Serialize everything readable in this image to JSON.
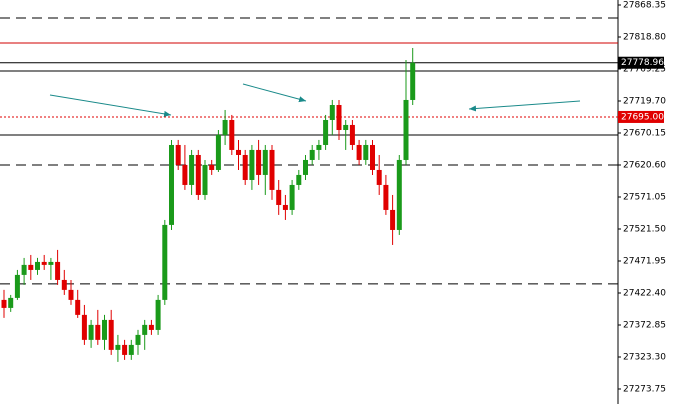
{
  "chart_data": {
    "type": "candlestick",
    "ylim": [
      27250.5,
      27876.1
    ],
    "yticks": [
      27868.35,
      {
        "value": 27818.8,
        "label": "27818.80"
      },
      27769.25,
      {
        "value": 27719.7,
        "label": "27719.70"
      },
      27670.15,
      {
        "value": 27620.6,
        "label": "27620.60"
      },
      27571.05,
      {
        "value": 27521.5,
        "label": "27521.50"
      },
      27471.95,
      {
        "value": 27422.4,
        "label": "27422.40"
      },
      27372.85,
      {
        "value": 27323.3,
        "label": "27323.30"
      },
      27273.75
    ],
    "up_color": "#1a9a1a",
    "down_color": "#e00000",
    "open": [
      27411.7,
      27399.3,
      27414.8,
      27450.4,
      27465.9,
      27458.1,
      27470.5,
      27465.9,
      27470.5,
      27442.6,
      27427.2,
      27411.7,
      27388.5,
      27349.8,
      27373.0,
      27349.8,
      27380.7,
      27334.3,
      27342.0,
      27326.5,
      27342.0,
      27357.5,
      27373.0,
      27365.2,
      27411.7,
      27527.8,
      27651.6,
      27620.7,
      27589.7,
      27636.1,
      27574.2,
      27620.7,
      27612.9,
      27667.1,
      27690.3,
      27643.9,
      27636.1,
      27597.4,
      27643.9,
      27605.2,
      27643.9,
      27582.0,
      27558.7,
      27551.0,
      27589.7,
      27605.2,
      27628.4,
      27643.9,
      27651.6,
      27690.3,
      27713.5,
      27674.8,
      27682.6,
      27651.6,
      27628.4,
      27651.6,
      27612.9,
      27589.7,
      27551.0,
      27520.0,
      27628.4,
      27721.3
    ],
    "high": [
      27427.2,
      27419.4,
      27458.1,
      27476.7,
      27481.3,
      27476.7,
      27481.3,
      27476.7,
      27489.1,
      27458.1,
      27442.6,
      27427.2,
      27403.9,
      27380.7,
      27396.2,
      27388.5,
      27396.2,
      27357.5,
      27349.8,
      27349.8,
      27365.2,
      27380.7,
      27380.7,
      27419.4,
      27535.5,
      27659.4,
      27659.4,
      27651.6,
      27643.9,
      27643.9,
      27628.4,
      27628.4,
      27674.8,
      27705.8,
      27698.1,
      27659.4,
      27643.9,
      27651.6,
      27659.4,
      27651.6,
      27651.6,
      27597.4,
      27574.2,
      27597.4,
      27612.9,
      27636.1,
      27651.6,
      27659.4,
      27698.1,
      27721.3,
      27721.3,
      27690.3,
      27690.3,
      27659.4,
      27659.4,
      27659.4,
      27636.1,
      27605.2,
      27574.2,
      27636.1,
      27783.2,
      27801.8
    ],
    "low": [
      27383.8,
      27393.1,
      27411.7,
      27434.9,
      27442.6,
      27450.4,
      27458.1,
      27442.6,
      27434.9,
      27419.4,
      27403.9,
      27383.8,
      27342.0,
      27337.4,
      27342.0,
      27334.3,
      27326.5,
      27315.7,
      27318.8,
      27318.8,
      27326.5,
      27334.3,
      27357.5,
      27357.5,
      27403.9,
      27520.0,
      27612.9,
      27582.0,
      27574.2,
      27566.5,
      27566.5,
      27605.2,
      27609.8,
      27651.6,
      27636.1,
      27612.9,
      27589.7,
      27582.0,
      27589.7,
      27574.2,
      27566.5,
      27543.3,
      27535.5,
      27543.3,
      27582.0,
      27597.4,
      27620.7,
      27628.4,
      27643.9,
      27667.1,
      27659.4,
      27643.9,
      27643.9,
      27620.7,
      27620.7,
      27605.2,
      27574.2,
      27543.3,
      27496.8,
      27512.3,
      27620.7,
      27713.5
    ],
    "close": [
      27399.3,
      27414.8,
      27450.4,
      27465.9,
      27458.1,
      27470.5,
      27465.9,
      27470.5,
      27442.6,
      27427.2,
      27411.7,
      27388.5,
      27349.8,
      27373.0,
      27349.8,
      27380.7,
      27334.3,
      27342.0,
      27326.5,
      27342.0,
      27357.5,
      27373.0,
      27365.2,
      27411.7,
      27527.8,
      27651.6,
      27620.7,
      27589.7,
      27636.1,
      27574.2,
      27620.7,
      27612.9,
      27667.1,
      27690.3,
      27643.9,
      27636.1,
      27597.4,
      27643.9,
      27605.2,
      27643.9,
      27582.0,
      27558.7,
      27551.0,
      27589.7,
      27605.2,
      27628.4,
      27643.9,
      27651.6,
      27690.3,
      27713.5,
      27674.8,
      27682.6,
      27651.6,
      27628.4,
      27651.6,
      27612.9,
      27589.7,
      27551.0,
      27520.0,
      27628.4,
      27721.3,
      27778.96
    ],
    "levels": [
      {
        "value": 27848.2,
        "color": "#000000",
        "style": "dashed"
      },
      {
        "value": 27809.5,
        "color": "#d00000",
        "style": "solid"
      },
      {
        "value": 27778.96,
        "color": "#000000",
        "style": "solid",
        "label_color": "#000000"
      },
      {
        "value": 27766.2,
        "color": "#000000",
        "style": "solid"
      },
      {
        "value": {
          "value": 27695,
          "label": "27695.00"
        },
        "color": "#e00000",
        "style": "dotted",
        "label_color": "#e00000"
      },
      {
        "value": 27667.1,
        "color": "#000000",
        "style": "solid"
      },
      {
        "value": 27620.6,
        "color": "#000000",
        "style": "dashed"
      },
      {
        "value": 27436.5,
        "color": "#000000",
        "style": "dashed"
      }
    ]
  }
}
